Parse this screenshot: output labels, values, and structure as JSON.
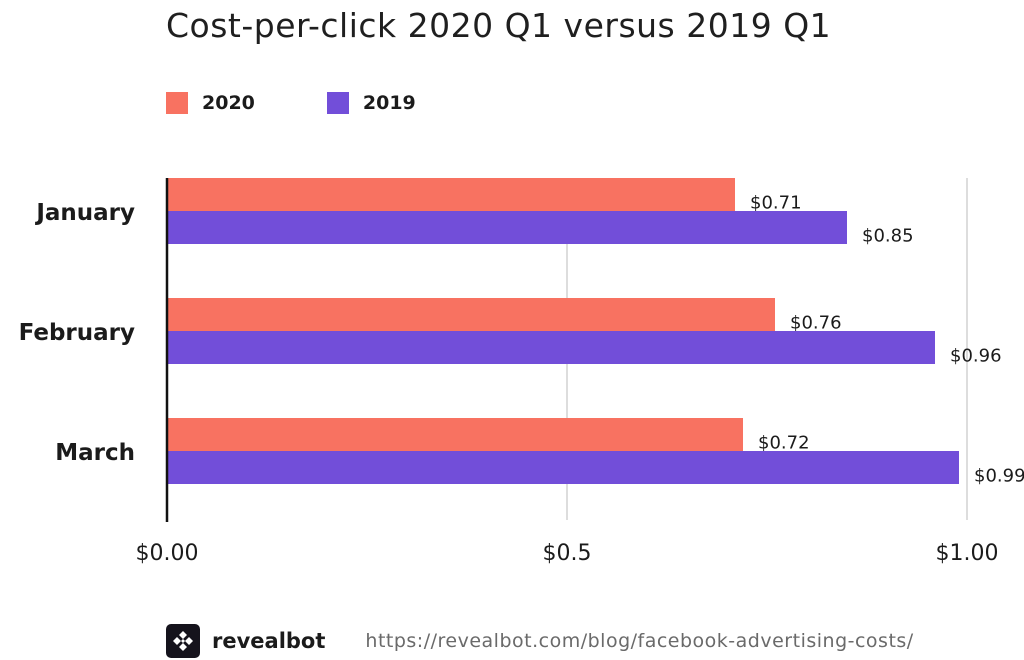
{
  "chart_data": {
    "type": "bar",
    "orientation": "horizontal",
    "title": "Cost-per-click 2020 Q1 versus 2019 Q1",
    "categories": [
      "January",
      "February",
      "March"
    ],
    "series": [
      {
        "name": "2020",
        "color": "#f87261",
        "values": [
          0.71,
          0.76,
          0.72
        ],
        "labels": [
          "$0.71",
          "$0.76",
          "$0.72"
        ]
      },
      {
        "name": "2019",
        "color": "#724ed9",
        "values": [
          0.85,
          0.96,
          0.99
        ],
        "labels": [
          "$0.85",
          "$0.96",
          "$0.99"
        ]
      }
    ],
    "xlim": [
      0,
      1.0
    ],
    "xticks": [
      0,
      0.5,
      1.0
    ],
    "xtick_labels": [
      "$0.00",
      "$0.5",
      "$1.00"
    ],
    "grid": true,
    "legend_position": "top-left"
  },
  "footer": {
    "brand": "revealbot",
    "url": "https://revealbot.com/blog/facebook-advertising-costs/",
    "logo_icon": "revealbot-logo-icon"
  }
}
